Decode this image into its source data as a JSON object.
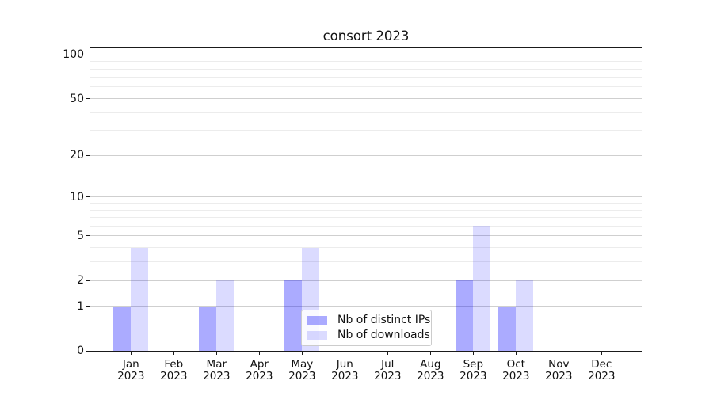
{
  "chart_data": {
    "type": "bar",
    "title": "consort 2023",
    "categories": [
      "Jan 2023",
      "Feb 2023",
      "Mar 2023",
      "Apr 2023",
      "May 2023",
      "Jun 2023",
      "Jul 2023",
      "Aug 2023",
      "Sep 2023",
      "Oct 2023",
      "Nov 2023",
      "Dec 2023"
    ],
    "xtick_labels": [
      [
        "Jan",
        "2023"
      ],
      [
        "Feb",
        "2023"
      ],
      [
        "Mar",
        "2023"
      ],
      [
        "Apr",
        "2023"
      ],
      [
        "May",
        "2023"
      ],
      [
        "Jun",
        "2023"
      ],
      [
        "Jul",
        "2023"
      ],
      [
        "Aug",
        "2023"
      ],
      [
        "Sep",
        "2023"
      ],
      [
        "Oct",
        "2023"
      ],
      [
        "Nov",
        "2023"
      ],
      [
        "Dec",
        "2023"
      ]
    ],
    "series": [
      {
        "name": "Nb of distinct IPs",
        "color": "rgba(0,0,255,0.33)",
        "values": [
          1,
          0,
          1,
          0,
          2,
          0,
          0,
          0,
          2,
          1,
          0,
          0
        ]
      },
      {
        "name": "Nb of downloads",
        "color": "rgba(0,0,255,0.14)",
        "values": [
          4,
          0,
          2,
          0,
          4,
          0,
          0,
          0,
          6,
          2,
          0,
          0
        ]
      }
    ],
    "xlabel": "",
    "ylabel": "",
    "yscale": "log1p",
    "ylim": [
      0,
      112
    ],
    "yticks_major": [
      0,
      1,
      2,
      5,
      10,
      20,
      50,
      100
    ],
    "yticks_minor": [
      3,
      4,
      6,
      7,
      8,
      9,
      30,
      40,
      60,
      70,
      80,
      90
    ],
    "grid": true,
    "legend_position": "lower center",
    "colors": {
      "bar_distinct_ips": "rgba(0,0,255,0.33)",
      "bar_downloads": "rgba(0,0,255,0.14)",
      "grid_major": "#cfcfcf",
      "grid_minor": "#ececec",
      "axis": "#1a1a1a",
      "text": "#111111",
      "legend_border": "#cccccc",
      "legend_background": "rgba(255,255,255,0.85)"
    }
  }
}
